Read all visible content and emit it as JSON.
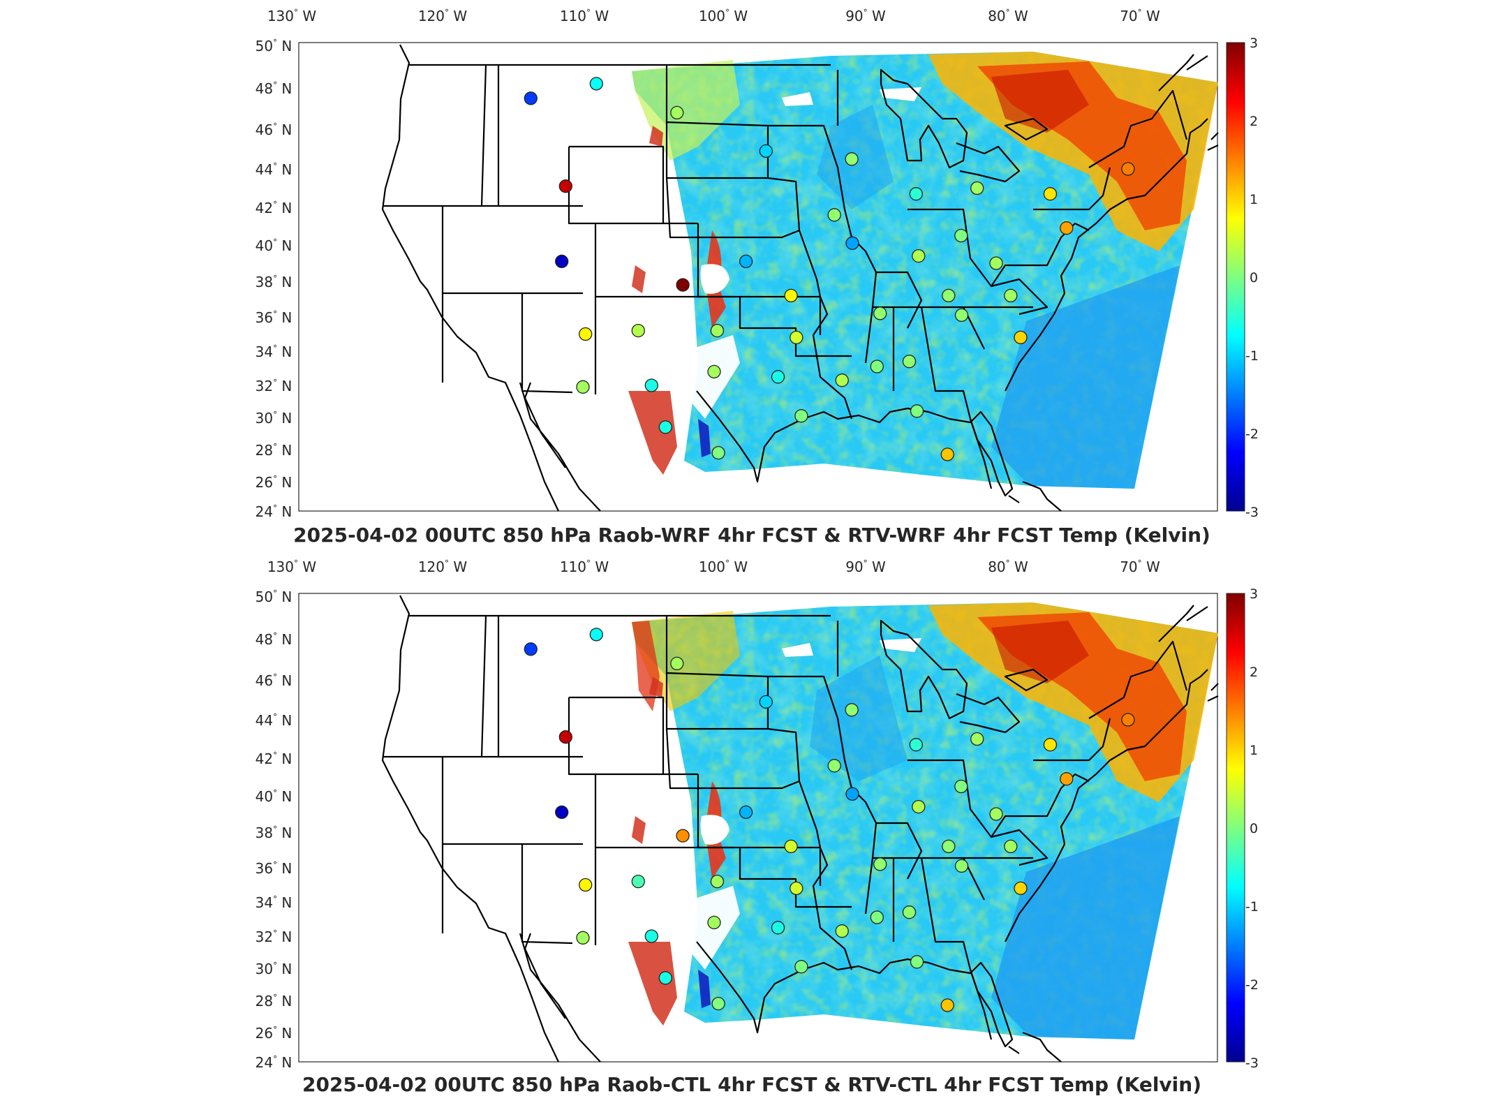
{
  "figure": {
    "lon_ticks": [
      "130",
      "120",
      "110",
      "100",
      "90",
      "80",
      "70"
    ],
    "lat_ticks": [
      "24",
      "26",
      "28",
      "30",
      "32",
      "34",
      "36",
      "38",
      "40",
      "42",
      "44",
      "46",
      "48",
      "50"
    ],
    "lon_hemisphere": "W",
    "lat_hemisphere": "N",
    "degree_symbol": "°",
    "colorbar": {
      "colormap": "jet",
      "range": [
        -3,
        3
      ],
      "ticks": [
        "3",
        "2",
        "1",
        "0",
        "-1",
        "-2",
        "-3"
      ]
    },
    "colors": {
      "map_outline": "#000000",
      "frame": "#262626",
      "background": "#ffffff"
    }
  },
  "panels": [
    {
      "title": "2025-04-02 00UTC 850 hPa Raob-WRF 4hr FCST & RTV-WRF 4hr FCST Temp (Kelvin)"
    },
    {
      "title": "2025-04-02 00UTC 850 hPa Raob-CTL 4hr FCST & RTV-CTL 4hr FCST Temp (Kelvin)"
    }
  ],
  "chart_data": [
    {
      "type": "heatmap",
      "title": "2025-04-02 00UTC 850 hPa Raob-WRF 4hr FCST & RTV-WRF 4hr FCST Temp (Kelvin)",
      "xlim": [
        -130,
        -63
      ],
      "ylim": [
        24,
        50
      ],
      "colorbar_range": [
        -3,
        3
      ],
      "raob_stations": [
        {
          "lon": -111.4,
          "lat": 47.5,
          "value": -1.9
        },
        {
          "lon": -106.6,
          "lat": 48.2,
          "value": -0.7
        },
        {
          "lon": -108.5,
          "lat": 43.1,
          "value": 2.6
        },
        {
          "lon": -108.5,
          "lat": 39.1,
          "value": -2.6
        },
        {
          "lon": -106.6,
          "lat": 35.0,
          "value": 0.8
        },
        {
          "lon": -106.6,
          "lat": 31.9,
          "value": 0.2
        },
        {
          "lon": -102.0,
          "lat": 32.0,
          "value": -0.6
        },
        {
          "lon": -103.0,
          "lat": 35.2,
          "value": 0.3
        },
        {
          "lon": -101.0,
          "lat": 29.4,
          "value": -0.6
        },
        {
          "lon": -100.0,
          "lat": 37.8,
          "value": 3.0
        },
        {
          "lon": -97.6,
          "lat": 35.2,
          "value": 0.2
        },
        {
          "lon": -97.8,
          "lat": 32.8,
          "value": 0.2
        },
        {
          "lon": -97.5,
          "lat": 27.8,
          "value": 0.0
        },
        {
          "lon": -100.6,
          "lat": 46.8,
          "value": 0.2
        },
        {
          "lon": -95.6,
          "lat": 39.1,
          "value": -1.2
        },
        {
          "lon": -94.1,
          "lat": 44.9,
          "value": -1.0
        },
        {
          "lon": -92.5,
          "lat": 37.2,
          "value": 0.8
        },
        {
          "lon": -92.2,
          "lat": 34.8,
          "value": 0.5
        },
        {
          "lon": -93.5,
          "lat": 32.5,
          "value": -0.6
        },
        {
          "lon": -92.0,
          "lat": 30.1,
          "value": 0.0
        },
        {
          "lon": -89.3,
          "lat": 41.6,
          "value": 0.1
        },
        {
          "lon": -88.1,
          "lat": 40.1,
          "value": -1.3
        },
        {
          "lon": -87.9,
          "lat": 44.5,
          "value": 0.1
        },
        {
          "lon": -86.4,
          "lat": 36.2,
          "value": 0.1
        },
        {
          "lon": -86.8,
          "lat": 33.1,
          "value": 0.0
        },
        {
          "lon": -89.2,
          "lat": 32.3,
          "value": 0.3
        },
        {
          "lon": -84.6,
          "lat": 33.4,
          "value": 0.1
        },
        {
          "lon": -83.5,
          "lat": 39.4,
          "value": 0.3
        },
        {
          "lon": -83.4,
          "lat": 42.7,
          "value": -0.5
        },
        {
          "lon": -81.6,
          "lat": 37.2,
          "value": 0.1
        },
        {
          "lon": -80.8,
          "lat": 36.1,
          "value": 0.1
        },
        {
          "lon": -80.4,
          "lat": 40.5,
          "value": 0.0
        },
        {
          "lon": -78.1,
          "lat": 39.0,
          "value": 0.2
        },
        {
          "lon": -79.0,
          "lat": 43.0,
          "value": 0.2
        },
        {
          "lon": -77.3,
          "lat": 37.2,
          "value": 0.2
        },
        {
          "lon": -76.9,
          "lat": 34.8,
          "value": 1.0
        },
        {
          "lon": -73.8,
          "lat": 42.7,
          "value": 0.9
        },
        {
          "lon": -72.9,
          "lat": 40.9,
          "value": 1.3
        },
        {
          "lon": -68.0,
          "lat": 44.0,
          "value": 1.5
        },
        {
          "lon": -84.3,
          "lat": 30.4,
          "value": 0.0
        },
        {
          "lon": -82.5,
          "lat": 27.7,
          "value": 1.1
        }
      ]
    },
    {
      "type": "heatmap",
      "title": "2025-04-02 00UTC 850 hPa Raob-CTL 4hr FCST & RTV-CTL 4hr FCST Temp (Kelvin)",
      "xlim": [
        -130,
        -63
      ],
      "ylim": [
        24,
        50
      ],
      "colorbar_range": [
        -3,
        3
      ],
      "raob_stations": [
        {
          "lon": -111.4,
          "lat": 47.5,
          "value": -1.9
        },
        {
          "lon": -106.6,
          "lat": 48.2,
          "value": -0.7
        },
        {
          "lon": -108.5,
          "lat": 43.1,
          "value": 2.6
        },
        {
          "lon": -108.5,
          "lat": 39.1,
          "value": -2.6
        },
        {
          "lon": -106.6,
          "lat": 35.0,
          "value": 0.8
        },
        {
          "lon": -106.6,
          "lat": 31.9,
          "value": 0.2
        },
        {
          "lon": -102.0,
          "lat": 32.0,
          "value": -0.6
        },
        {
          "lon": -103.0,
          "lat": 35.2,
          "value": -0.3
        },
        {
          "lon": -101.0,
          "lat": 29.4,
          "value": -0.6
        },
        {
          "lon": -100.0,
          "lat": 37.8,
          "value": 1.4
        },
        {
          "lon": -97.6,
          "lat": 35.2,
          "value": 0.2
        },
        {
          "lon": -97.8,
          "lat": 32.8,
          "value": 0.2
        },
        {
          "lon": -97.5,
          "lat": 27.8,
          "value": 0.0
        },
        {
          "lon": -100.6,
          "lat": 46.8,
          "value": 0.2
        },
        {
          "lon": -95.6,
          "lat": 39.1,
          "value": -1.2
        },
        {
          "lon": -94.1,
          "lat": 44.9,
          "value": -1.0
        },
        {
          "lon": -92.5,
          "lat": 37.2,
          "value": 0.5
        },
        {
          "lon": -92.2,
          "lat": 34.8,
          "value": 0.5
        },
        {
          "lon": -93.5,
          "lat": 32.5,
          "value": -0.6
        },
        {
          "lon": -92.0,
          "lat": 30.1,
          "value": 0.0
        },
        {
          "lon": -89.3,
          "lat": 41.6,
          "value": 0.1
        },
        {
          "lon": -88.1,
          "lat": 40.1,
          "value": -1.3
        },
        {
          "lon": -87.9,
          "lat": 44.5,
          "value": 0.1
        },
        {
          "lon": -86.4,
          "lat": 36.2,
          "value": 0.1
        },
        {
          "lon": -86.8,
          "lat": 33.1,
          "value": 0.0
        },
        {
          "lon": -89.2,
          "lat": 32.3,
          "value": 0.3
        },
        {
          "lon": -84.6,
          "lat": 33.4,
          "value": 0.1
        },
        {
          "lon": -83.5,
          "lat": 39.4,
          "value": 0.3
        },
        {
          "lon": -83.4,
          "lat": 42.7,
          "value": -0.5
        },
        {
          "lon": -81.6,
          "lat": 37.2,
          "value": 0.1
        },
        {
          "lon": -80.8,
          "lat": 36.1,
          "value": 0.1
        },
        {
          "lon": -80.4,
          "lat": 40.5,
          "value": 0.0
        },
        {
          "lon": -78.1,
          "lat": 39.0,
          "value": 0.2
        },
        {
          "lon": -79.0,
          "lat": 43.0,
          "value": 0.2
        },
        {
          "lon": -77.3,
          "lat": 37.2,
          "value": 0.2
        },
        {
          "lon": -76.9,
          "lat": 34.8,
          "value": 1.0
        },
        {
          "lon": -73.8,
          "lat": 42.7,
          "value": 0.9
        },
        {
          "lon": -72.9,
          "lat": 40.9,
          "value": 1.3
        },
        {
          "lon": -68.0,
          "lat": 44.0,
          "value": 1.5
        },
        {
          "lon": -84.3,
          "lat": 30.4,
          "value": 0.0
        },
        {
          "lon": -82.5,
          "lat": 27.7,
          "value": 1.1
        }
      ]
    }
  ]
}
